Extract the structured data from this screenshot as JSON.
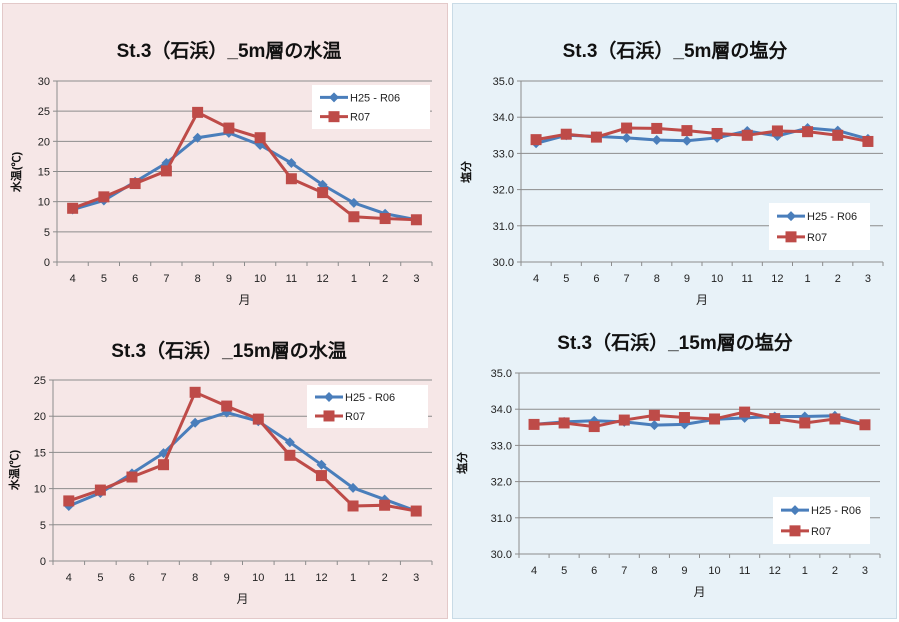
{
  "chart_data": [
    {
      "type": "line",
      "title": "St.3（石浜）_5m層の水温",
      "xlabel": "月",
      "ylabel": "水温(℃)",
      "ylim": [
        0,
        30
      ],
      "yticks": [
        "0",
        "5",
        "10",
        "15",
        "20",
        "25",
        "30"
      ],
      "legend": "top-right",
      "categories": [
        "4",
        "5",
        "6",
        "7",
        "8",
        "9",
        "10",
        "11",
        "12",
        "1",
        "2",
        "3"
      ],
      "series": [
        {
          "name": "H25 - R06",
          "color": "#4a7ebb",
          "values": [
            8.7,
            10.2,
            13.3,
            16.4,
            20.6,
            21.4,
            19.4,
            16.4,
            12.8,
            9.8,
            8.0,
            7.0
          ]
        },
        {
          "name": "R07",
          "color": "#be4b48",
          "values": [
            8.9,
            10.8,
            13.0,
            15.1,
            24.8,
            22.2,
            20.6,
            13.8,
            11.5,
            7.5,
            7.2,
            7.0
          ]
        }
      ]
    },
    {
      "type": "line",
      "title": "St.3（石浜）_15m層の水温",
      "xlabel": "月",
      "ylabel": "水温(℃)",
      "ylim": [
        0,
        25
      ],
      "yticks": [
        "0",
        "5",
        "10",
        "15",
        "20",
        "25"
      ],
      "legend": "top-right",
      "categories": [
        "4",
        "5",
        "6",
        "7",
        "8",
        "9",
        "10",
        "11",
        "12",
        "1",
        "2",
        "3"
      ],
      "series": [
        {
          "name": "H25 - R06",
          "color": "#4a7ebb",
          "values": [
            7.6,
            9.4,
            12.1,
            14.9,
            19.1,
            20.5,
            19.3,
            16.4,
            13.3,
            10.1,
            8.5,
            6.9
          ]
        },
        {
          "name": "R07",
          "color": "#be4b48",
          "values": [
            8.3,
            9.8,
            11.6,
            13.3,
            23.3,
            21.4,
            19.6,
            14.6,
            11.8,
            7.6,
            7.7,
            6.9
          ]
        }
      ]
    },
    {
      "type": "line",
      "title": "St.3（石浜）_5m層の塩分",
      "xlabel": "月",
      "ylabel": "塩分",
      "ylim": [
        30,
        35
      ],
      "yticks": [
        "30.0",
        "31.0",
        "32.0",
        "33.0",
        "34.0",
        "35.0"
      ],
      "legend": "bottom-right",
      "categories": [
        "4",
        "5",
        "6",
        "7",
        "8",
        "9",
        "10",
        "11",
        "12",
        "1",
        "2",
        "3"
      ],
      "series": [
        {
          "name": "H25 - R06",
          "color": "#4a7ebb",
          "values": [
            33.28,
            33.5,
            33.47,
            33.43,
            33.37,
            33.35,
            33.43,
            33.62,
            33.48,
            33.7,
            33.63,
            33.4
          ]
        },
        {
          "name": "R07",
          "color": "#be4b48",
          "values": [
            33.38,
            33.53,
            33.45,
            33.7,
            33.69,
            33.63,
            33.55,
            33.5,
            33.62,
            33.6,
            33.5,
            33.33
          ]
        }
      ]
    },
    {
      "type": "line",
      "title": "St.3（石浜）_15m層の塩分",
      "xlabel": "月",
      "ylabel": "塩分",
      "ylim": [
        30,
        35
      ],
      "yticks": [
        "30.0",
        "31.0",
        "32.0",
        "33.0",
        "34.0",
        "35.0"
      ],
      "legend": "bottom-right",
      "categories": [
        "4",
        "5",
        "6",
        "7",
        "8",
        "9",
        "10",
        "11",
        "12",
        "1",
        "2",
        "3"
      ],
      "series": [
        {
          "name": "H25 - R06",
          "color": "#4a7ebb",
          "values": [
            33.58,
            33.65,
            33.68,
            33.65,
            33.56,
            33.58,
            33.72,
            33.76,
            33.8,
            33.8,
            33.82,
            33.58
          ]
        },
        {
          "name": "R07",
          "color": "#be4b48",
          "values": [
            33.58,
            33.62,
            33.52,
            33.7,
            33.83,
            33.77,
            33.73,
            33.92,
            33.74,
            33.62,
            33.73,
            33.57
          ]
        }
      ]
    }
  ]
}
